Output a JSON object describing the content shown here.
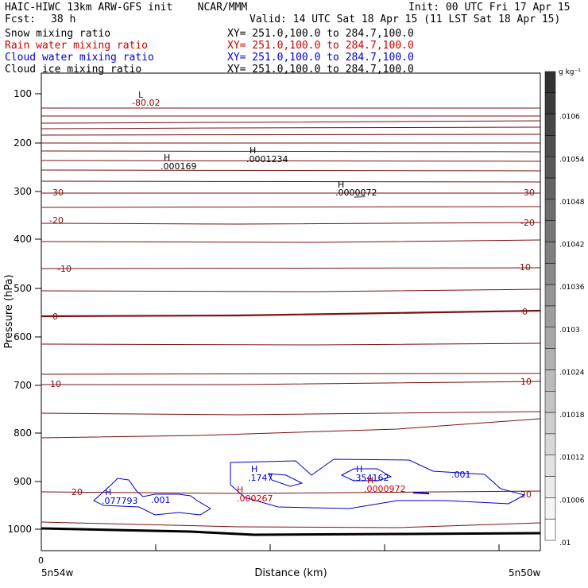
{
  "header": {
    "title": "HAIC-HIWC 13km ARW-GFS init    NCAR/MMM",
    "init": "Init: 00 UTC Fri 17 Apr 15",
    "fcst_label": "Fcst:",
    "fcst_value": "38 h",
    "valid": "Valid: 14 UTC Sat 18 Apr 15 (11 LST Sat 18 Apr 15)",
    "fields": [
      {
        "name": "Snow mixing ratio",
        "xy": "XY= 251.0,100.0 to 284.7,100.0",
        "color": "#000000"
      },
      {
        "name": "Rain water mixing ratio",
        "xy": "XY= 251.0,100.0 to 284.7,100.0",
        "color": "#cc0000"
      },
      {
        "name": "Cloud water mixing ratio",
        "xy": "XY= 251.0,100.0 to 284.7,100.0",
        "color": "#0000cc"
      },
      {
        "name": "Cloud ice mixing ratio",
        "xy": "XY= 251.0,100.0 to 284.7,100.0",
        "color": "#000000"
      }
    ]
  },
  "chart_data": {
    "type": "cross-section contour",
    "ylabel": "Pressure (hPa)",
    "xlabel": "Distance (km)",
    "x_zero_label": "0",
    "x_left_label": "5n54w",
    "x_right_label": "5n50w",
    "y_ticks": [
      "100",
      "200",
      "300",
      "400",
      "500",
      "600",
      "700",
      "800",
      "900",
      "1000"
    ],
    "temperature_labels": [
      {
        "text": "-30",
        "p": 300,
        "side": "both"
      },
      {
        "text": "-20",
        "p": 340,
        "side": "both"
      },
      {
        "text": "-10",
        "p": 470,
        "side": "both"
      },
      {
        "text": "0",
        "p": 560,
        "side": "both"
      },
      {
        "text": "10",
        "p": 720,
        "side": "both"
      },
      {
        "text": "20",
        "p": 930,
        "side": "both"
      }
    ],
    "extrema": [
      {
        "type": "L",
        "value": "-80.02",
        "color": "#8b0000"
      },
      {
        "type": "H",
        "value": ".000169",
        "color": "#000000"
      },
      {
        "type": "H",
        "value": ".0001234",
        "color": "#000000"
      },
      {
        "type": "H",
        "value": ".0000072",
        "color": "#000000"
      },
      {
        "type": "H",
        "value": ".1747",
        "color": "#0000cc"
      },
      {
        "type": "H",
        "value": ".354162",
        "color": "#0000cc"
      },
      {
        "type": "H",
        "value": ".077793",
        "color": "#0000cc"
      },
      {
        "type": "H",
        "value": ".000267",
        "color": "#cc0000"
      },
      {
        "type": "H",
        "value": ".0000972",
        "color": "#cc0000"
      }
    ],
    "cloud_contour_labels": [
      ".001",
      ".001"
    ],
    "colorbar": {
      "unit": "g kg⁻¹",
      "labels": [
        ".0106",
        ".01054",
        ".01048",
        ".01042",
        ".01036",
        ".0103",
        ".01024",
        ".01018",
        ".01012",
        ".01006",
        ".01"
      ]
    }
  }
}
